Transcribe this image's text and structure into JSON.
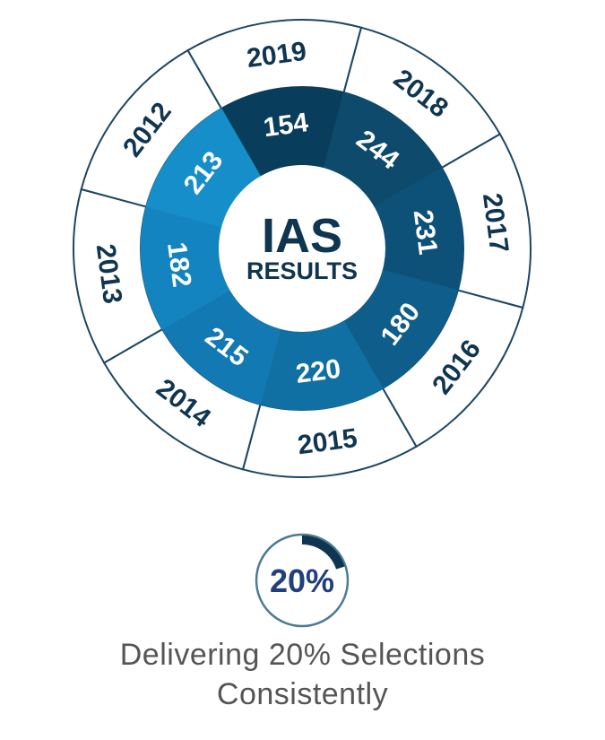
{
  "chart_data": {
    "type": "pie",
    "title": "IAS",
    "subtitle": "RESULTS",
    "categories": [
      "2019",
      "2018",
      "2017",
      "2016",
      "2015",
      "2014",
      "2013",
      "2012"
    ],
    "values": [
      154,
      244,
      231,
      180,
      220,
      215,
      182,
      213
    ],
    "colors": [
      "#083d5c",
      "#0d4a6c",
      "#0d5178",
      "#0f5d8a",
      "#1070a3",
      "#1279b2",
      "#1384bf",
      "#168ec9"
    ]
  },
  "badge": {
    "percent": 20,
    "label": "20%",
    "accent": "#0f3551",
    "ring": "#4d7a94"
  },
  "caption": {
    "line1": "Delivering 20% Selections",
    "line2": "Consistently"
  }
}
